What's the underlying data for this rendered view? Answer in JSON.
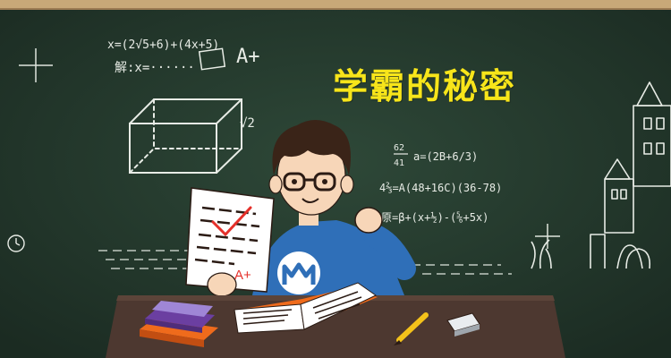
{
  "banner": {
    "title": "学霸的秘密"
  },
  "blackboard_notes": {
    "line1": "x=(2√5+6)+(4x+5)",
    "line2": "解:x=······",
    "grade": "A+",
    "sqrt_label": "√2",
    "eq_fraction_top": "62",
    "eq_fraction_bottom": "41",
    "eq1_rest": "a=(2B+6/3)",
    "eq2": "4⅔=A(48+16C)(36-78)",
    "eq3": "原=β+(x+½)-(⅚+5x)"
  },
  "test_paper": {
    "grade": "A+"
  },
  "colors": {
    "board": "#253b2f",
    "frame": "#c8a878",
    "desk": "#4d3830",
    "shirt": "#2f6fb8",
    "title": "#f7e51a",
    "book_orange": "#ef6b1c",
    "grade_red": "#e5302a"
  }
}
